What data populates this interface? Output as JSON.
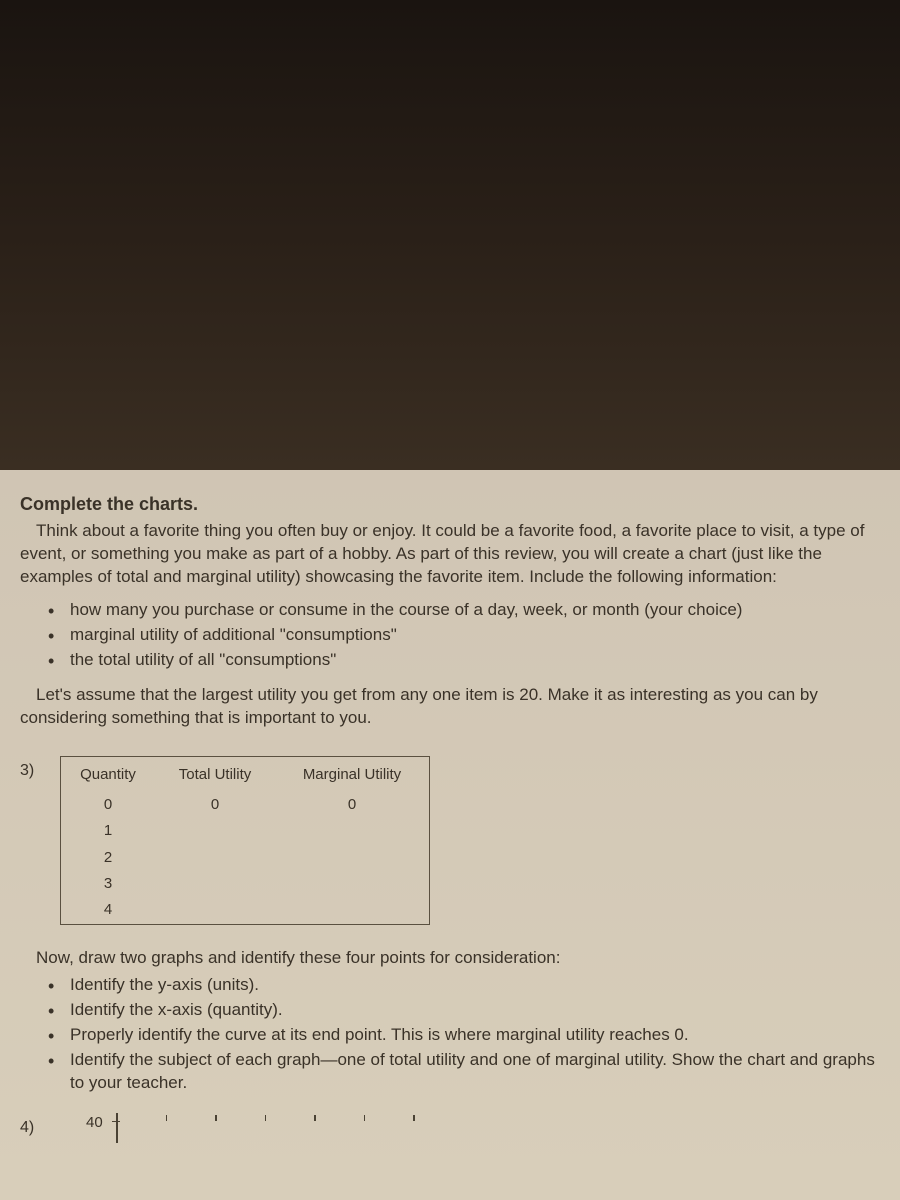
{
  "heading": "Complete the charts.",
  "intro": "Think about a favorite thing you often buy or enjoy. It could be a favorite food, a favorite place to visit, a type of event, or something you make as part of a hobby. As part of this review, you will create a chart (just like the examples of total and marginal utility) showcasing the favorite item. Include the following information:",
  "bullets1": [
    "how many you purchase or consume in the course of a day, week, or month (your choice)",
    "marginal utility of additional \"consumptions\"",
    "the total utility of all \"consumptions\""
  ],
  "assume": "Let's assume that the largest utility you get from any one item is 20. Make it as interesting as you can by considering something that is important to you.",
  "q3": "3)",
  "table": {
    "headers": [
      "Quantity",
      "Total Utility",
      "Marginal Utility"
    ],
    "rows": [
      [
        "0",
        "0",
        "0"
      ],
      [
        "1",
        "",
        ""
      ],
      [
        "2",
        "",
        ""
      ],
      [
        "3",
        "",
        ""
      ],
      [
        "4",
        "",
        ""
      ]
    ]
  },
  "now": "Now, draw two graphs and identify these four points for consideration:",
  "bullets2": [
    "Identify the y-axis (units).",
    "Identify the x-axis (quantity).",
    "Properly identify the curve at its end point. This is where marginal utility reaches 0.",
    "Identify the subject of each graph—one of total utility and one of marginal utility. Show the chart and graphs to your teacher."
  ],
  "q4": "4)",
  "yTick": "40"
}
